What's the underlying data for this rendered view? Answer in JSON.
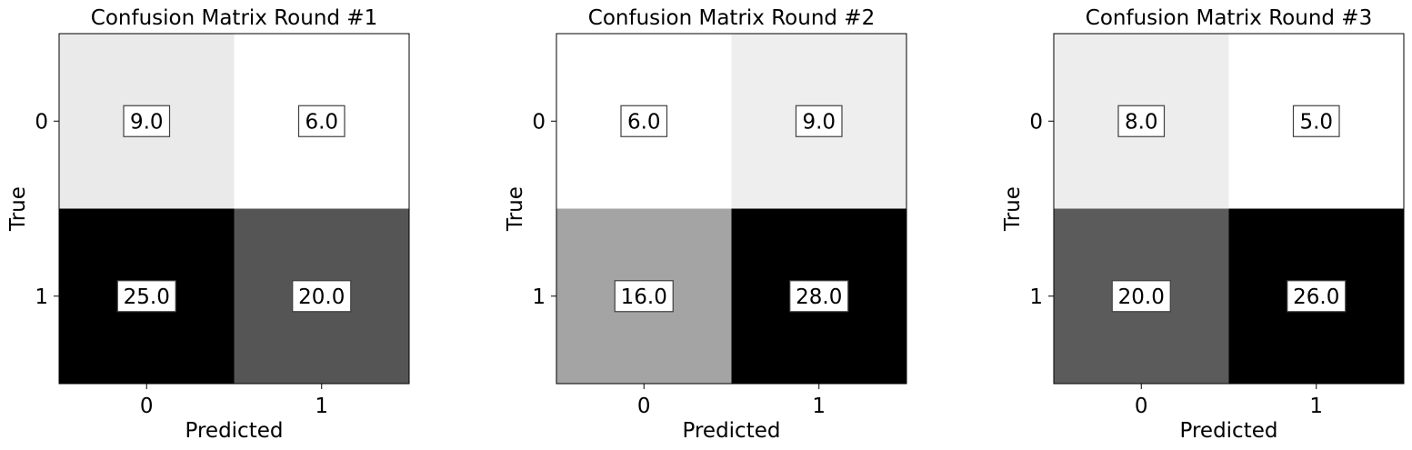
{
  "chart_data": [
    {
      "type": "heatmap",
      "title": "Confusion Matrix Round #1",
      "xlabel": "Predicted",
      "ylabel": "True",
      "x_ticks": [
        "0",
        "1"
      ],
      "y_ticks": [
        "0",
        "1"
      ],
      "matrix": [
        [
          9.0,
          6.0
        ],
        [
          25.0,
          20.0
        ]
      ],
      "labels": [
        [
          "9.0",
          "6.0"
        ],
        [
          "25.0",
          "20.0"
        ]
      ],
      "colormap": "Greys"
    },
    {
      "type": "heatmap",
      "title": "Confusion Matrix Round #2",
      "xlabel": "Predicted",
      "ylabel": "True",
      "x_ticks": [
        "0",
        "1"
      ],
      "y_ticks": [
        "0",
        "1"
      ],
      "matrix": [
        [
          6.0,
          9.0
        ],
        [
          16.0,
          28.0
        ]
      ],
      "labels": [
        [
          "6.0",
          "9.0"
        ],
        [
          "16.0",
          "28.0"
        ]
      ],
      "colormap": "Greys"
    },
    {
      "type": "heatmap",
      "title": "Confusion Matrix Round #3",
      "xlabel": "Predicted",
      "ylabel": "True",
      "x_ticks": [
        "0",
        "1"
      ],
      "y_ticks": [
        "0",
        "1"
      ],
      "matrix": [
        [
          8.0,
          5.0
        ],
        [
          20.0,
          26.0
        ]
      ],
      "labels": [
        [
          "8.0",
          "5.0"
        ],
        [
          "20.0",
          "26.0"
        ]
      ],
      "colormap": "Greys"
    }
  ]
}
